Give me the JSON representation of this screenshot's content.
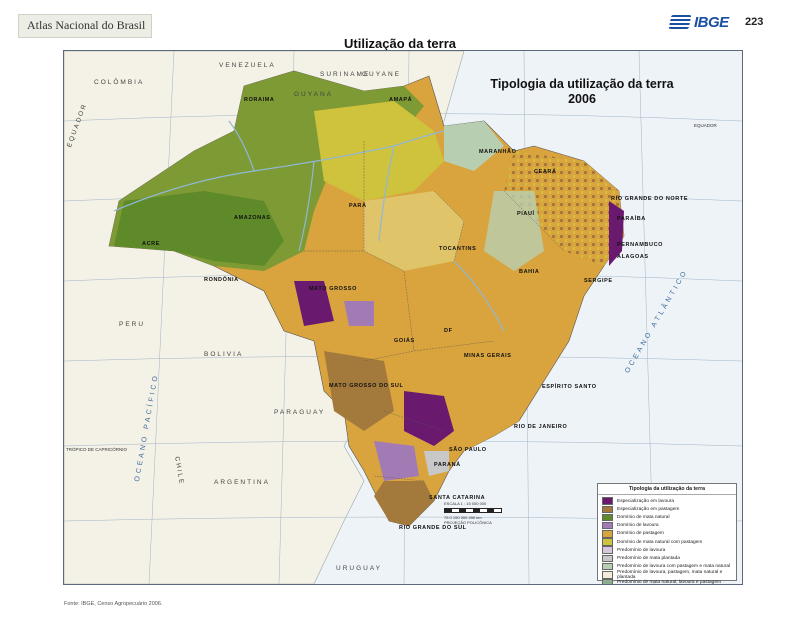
{
  "header": {
    "atlas_title": "Atlas Nacional do Brasil",
    "logo_text": "IBGE",
    "page_number": "223"
  },
  "page_title": "Utilização da terra",
  "map": {
    "title_line1": "Tipologia da utilização da terra",
    "title_line2": "2006",
    "countries": [
      "COLÔMBIA",
      "VENEZUELA",
      "GUYANA",
      "SURINAME",
      "GUYANE",
      "EQUADOR",
      "PERU",
      "BOLIVIA",
      "PARAGUAY",
      "ARGENTINA",
      "CHILE",
      "URUGUAY"
    ],
    "oceans": [
      "OCEANO PACÍFICO",
      "OCEANO ATLÂNTICO"
    ],
    "states": [
      "RORAIMA",
      "AMAPÁ",
      "AMAZONAS",
      "PARÁ",
      "MARANHÃO",
      "CEARÁ",
      "PIAUÍ",
      "RIO GRANDE DO NORTE",
      "PARAÍBA",
      "PERNAMBUCO",
      "ALAGOAS",
      "SERGIPE",
      "ACRE",
      "RONDÔNIA",
      "MATO GROSSO",
      "TOCANTINS",
      "BAHIA",
      "GOIÁS",
      "DF",
      "MINAS GERAIS",
      "ESPÍRITO SANTO",
      "MATO GROSSO DO SUL",
      "RIO DE JANEIRO",
      "SÃO PAULO",
      "PARANÁ",
      "SANTA CATARINA",
      "RIO GRANDE DO SUL"
    ],
    "equator_label": "EQUADOR",
    "capricorn_label": "TRÓPICO DE CAPRICÓRNIO"
  },
  "legend": {
    "title": "Tipologia da utilização da terra",
    "items": [
      {
        "label": "Especialização em lavoura",
        "color": "#6a1a6e"
      },
      {
        "label": "Especialização em pastagem",
        "color": "#a47a3c"
      },
      {
        "label": "Domínio de mata natural",
        "color": "#5f8a2a"
      },
      {
        "label": "Domínio de lavoura",
        "color": "#a27bb4"
      },
      {
        "label": "Domínio de pastagem",
        "color": "#d9a43e"
      },
      {
        "label": "Domínio de mata natural com pastagem",
        "color": "#cfc23c"
      },
      {
        "label": "Predomínio de lavoura",
        "color": "#d7c6de"
      },
      {
        "label": "Predomínio de mata plantada",
        "color": "#c8c8c8"
      },
      {
        "label": "Predomínio de lavoura com pastagem e mata natural",
        "color": "#b8ceb0"
      },
      {
        "label": "Predomínio de lavoura, pastagem, mata natural e plantada",
        "color": "#f2ecd8"
      },
      {
        "label": "Predomínio de mata natural, lavoura e pastagem",
        "color": "#8fae8e"
      }
    ]
  },
  "scale": {
    "label": "ESCALA 1 : 15 000 000",
    "ticks": "75   0   150   300  450 km",
    "projection": "PROJEÇÃO POLICÔNICA"
  },
  "source": "Fonte: IBGE, Censo Agropecuário 2006.",
  "colors": {
    "ocean": "#eef3f8",
    "land_neighbor": "#f4f1e6",
    "graticule": "#9fb4c8"
  }
}
